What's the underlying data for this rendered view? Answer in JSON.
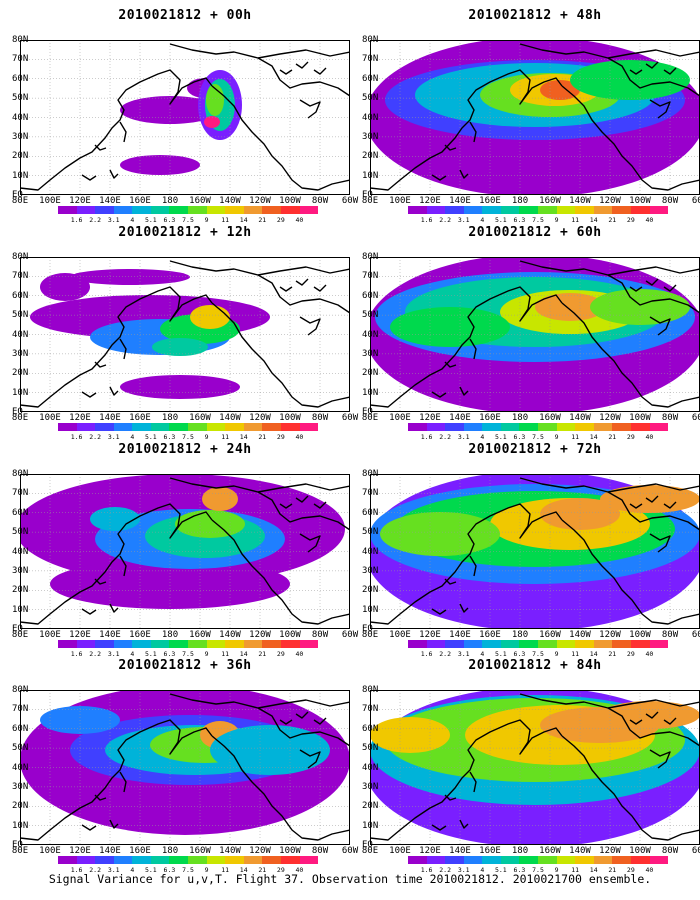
{
  "panels": [
    {
      "title": "2010021812 + 00h",
      "level": 0
    },
    {
      "title": "2010021812 + 12h",
      "level": 1
    },
    {
      "title": "2010021812 + 24h",
      "level": 2
    },
    {
      "title": "2010021812 + 36h",
      "level": 3
    },
    {
      "title": "2010021812 + 48h",
      "level": 4
    },
    {
      "title": "2010021812 + 60h",
      "level": 5
    },
    {
      "title": "2010021812 + 72h",
      "level": 6
    },
    {
      "title": "2010021812 + 84h",
      "level": 7
    }
  ],
  "y_labels": [
    "80N",
    "70N",
    "60N",
    "50N",
    "40N",
    "30N",
    "20N",
    "10N",
    "EQ"
  ],
  "x_labels": [
    "80E",
    "100E",
    "120E",
    "140E",
    "160E",
    "180",
    "160W",
    "140W",
    "120W",
    "100W",
    "80W",
    "60W"
  ],
  "colorbar": {
    "labels": [
      "1.6",
      "2.2",
      "3.1",
      "4",
      "5.1",
      "6.3",
      "7.5",
      "9",
      "11",
      "14",
      "21",
      "29",
      "40"
    ],
    "colors": [
      "#9900cc",
      "#7a1fff",
      "#4040ff",
      "#1f7fff",
      "#00b3d9",
      "#00c9a0",
      "#00d94d",
      "#66e020",
      "#c8e600",
      "#f0c800",
      "#f09a30",
      "#f06020",
      "#ff3030",
      "#ff1a80"
    ]
  },
  "caption": "Signal Variance for u,v,T. Flight 37. Observation time 2010021812. 2010021700 ensemble."
}
